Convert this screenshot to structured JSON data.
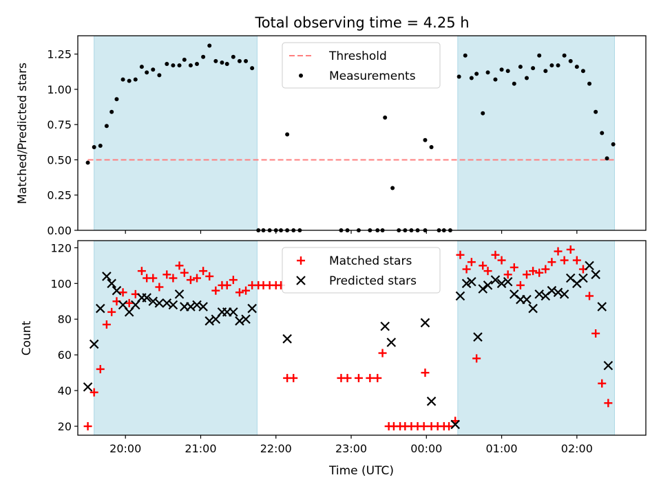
{
  "title": "Total observing time = 4.25 h",
  "colors": {
    "shade": "#add8e6",
    "threshold": "#ff7f7f",
    "matched": "#ff0000",
    "predicted": "#000000",
    "measurement": "#000000"
  },
  "chart_data": [
    {
      "type": "scatter",
      "panel": "top",
      "ylabel": "Matched/Predicted stars",
      "xlim": [
        "19:22",
        "02:55"
      ],
      "ylim": [
        0,
        1.38
      ],
      "yticks": [
        "0.00",
        "0.25",
        "0.50",
        "0.75",
        "1.00",
        "1.25"
      ],
      "shaded_intervals": [
        [
          "19:35",
          "21:45"
        ],
        [
          "00:25",
          "02:30"
        ]
      ],
      "threshold": {
        "name": "Threshold",
        "value": 0.5,
        "style": "dashed",
        "from": "19:30",
        "to": "02:30"
      },
      "legend": {
        "placement": "top-center",
        "entries": [
          "Threshold",
          "Measurements"
        ]
      },
      "series": [
        {
          "name": "Measurements",
          "marker": "dot",
          "points": [
            [
              "19:30",
              0.48
            ],
            [
              "19:35",
              0.59
            ],
            [
              "19:40",
              0.6
            ],
            [
              "19:45",
              0.74
            ],
            [
              "19:49",
              0.84
            ],
            [
              "19:53",
              0.93
            ],
            [
              "19:58",
              1.07
            ],
            [
              "20:03",
              1.06
            ],
            [
              "20:08",
              1.07
            ],
            [
              "20:13",
              1.16
            ],
            [
              "20:17",
              1.12
            ],
            [
              "20:22",
              1.14
            ],
            [
              "20:27",
              1.1
            ],
            [
              "20:33",
              1.18
            ],
            [
              "20:38",
              1.17
            ],
            [
              "20:43",
              1.17
            ],
            [
              "20:47",
              1.21
            ],
            [
              "20:52",
              1.17
            ],
            [
              "20:57",
              1.18
            ],
            [
              "21:02",
              1.23
            ],
            [
              "21:07",
              1.31
            ],
            [
              "21:12",
              1.2
            ],
            [
              "21:17",
              1.19
            ],
            [
              "21:21",
              1.18
            ],
            [
              "21:26",
              1.23
            ],
            [
              "21:31",
              1.2
            ],
            [
              "21:36",
              1.2
            ],
            [
              "21:41",
              1.15
            ],
            [
              "21:46",
              0.0
            ],
            [
              "21:50",
              0.0
            ],
            [
              "21:55",
              0.0
            ],
            [
              "22:00",
              0.0
            ],
            [
              "22:04",
              0.0
            ],
            [
              "22:09",
              0.0
            ],
            [
              "22:14",
              0.0
            ],
            [
              "22:19",
              0.0
            ],
            [
              "22:09",
              0.68
            ],
            [
              "22:52",
              0.0
            ],
            [
              "22:57",
              0.0
            ],
            [
              "23:06",
              0.0
            ],
            [
              "23:15",
              0.0
            ],
            [
              "23:21",
              0.0
            ],
            [
              "23:25",
              0.0
            ],
            [
              "23:27",
              0.8
            ],
            [
              "23:33",
              0.3
            ],
            [
              "23:38",
              0.0
            ],
            [
              "23:43",
              0.0
            ],
            [
              "23:48",
              0.0
            ],
            [
              "23:53",
              0.0
            ],
            [
              "23:59",
              0.0
            ],
            [
              "23:59",
              0.64
            ],
            [
              "00:04",
              0.59
            ],
            [
              "00:10",
              0.0
            ],
            [
              "00:14",
              0.0
            ],
            [
              "00:19",
              0.0
            ],
            [
              "00:26",
              1.09
            ],
            [
              "00:31",
              1.24
            ],
            [
              "00:36",
              1.08
            ],
            [
              "00:40",
              1.11
            ],
            [
              "00:45",
              0.83
            ],
            [
              "00:49",
              1.12
            ],
            [
              "00:55",
              1.07
            ],
            [
              "01:00",
              1.14
            ],
            [
              "01:05",
              1.13
            ],
            [
              "01:10",
              1.04
            ],
            [
              "01:15",
              1.16
            ],
            [
              "01:20",
              1.08
            ],
            [
              "01:25",
              1.15
            ],
            [
              "01:30",
              1.24
            ],
            [
              "01:35",
              1.13
            ],
            [
              "01:40",
              1.17
            ],
            [
              "01:45",
              1.17
            ],
            [
              "01:50",
              1.24
            ],
            [
              "01:55",
              1.2
            ],
            [
              "02:00",
              1.16
            ],
            [
              "02:05",
              1.13
            ],
            [
              "02:10",
              1.04
            ],
            [
              "02:15",
              0.84
            ],
            [
              "02:20",
              0.69
            ],
            [
              "02:24",
              0.51
            ],
            [
              "02:29",
              0.61
            ]
          ]
        }
      ]
    },
    {
      "type": "scatter",
      "panel": "bottom",
      "xlabel": "Time (UTC)",
      "ylabel": "Count",
      "xlim": [
        "19:22",
        "02:55"
      ],
      "ylim": [
        15,
        124
      ],
      "xticks": [
        "20:00",
        "21:00",
        "22:00",
        "23:00",
        "00:00",
        "01:00",
        "02:00"
      ],
      "yticks": [
        "20",
        "40",
        "60",
        "80",
        "100",
        "120"
      ],
      "shaded_intervals": [
        [
          "19:35",
          "21:45"
        ],
        [
          "00:25",
          "02:30"
        ]
      ],
      "legend": {
        "placement": "top-center",
        "entries": [
          "Matched stars",
          "Predicted stars"
        ]
      },
      "series": [
        {
          "name": "Matched stars",
          "marker": "plus",
          "points": [
            [
              "19:30",
              20
            ],
            [
              "19:35",
              39
            ],
            [
              "19:40",
              52
            ],
            [
              "19:45",
              77
            ],
            [
              "19:49",
              84
            ],
            [
              "19:53",
              90
            ],
            [
              "19:58",
              95
            ],
            [
              "20:03",
              89
            ],
            [
              "20:08",
              94
            ],
            [
              "20:13",
              107
            ],
            [
              "20:17",
              103
            ],
            [
              "20:22",
              103
            ],
            [
              "20:27",
              98
            ],
            [
              "20:33",
              105
            ],
            [
              "20:38",
              103
            ],
            [
              "20:43",
              110
            ],
            [
              "20:47",
              106
            ],
            [
              "20:52",
              102
            ],
            [
              "20:57",
              103
            ],
            [
              "21:02",
              107
            ],
            [
              "21:07",
              104
            ],
            [
              "21:12",
              96
            ],
            [
              "21:17",
              99
            ],
            [
              "21:21",
              99
            ],
            [
              "21:26",
              102
            ],
            [
              "21:31",
              95
            ],
            [
              "21:36",
              96
            ],
            [
              "21:41",
              99
            ],
            [
              "21:46",
              99
            ],
            [
              "21:50",
              99
            ],
            [
              "21:55",
              99
            ],
            [
              "22:00",
              99
            ],
            [
              "22:04",
              99
            ],
            [
              "22:09",
              47
            ],
            [
              "22:14",
              47
            ],
            [
              "22:52",
              47
            ],
            [
              "22:57",
              47
            ],
            [
              "23:06",
              47
            ],
            [
              "23:15",
              47
            ],
            [
              "23:21",
              47
            ],
            [
              "23:25",
              61
            ],
            [
              "23:30",
              20
            ],
            [
              "23:34",
              20
            ],
            [
              "23:39",
              20
            ],
            [
              "23:43",
              20
            ],
            [
              "23:48",
              20
            ],
            [
              "23:53",
              20
            ],
            [
              "23:59",
              50
            ],
            [
              "23:58",
              20
            ],
            [
              "00:04",
              20
            ],
            [
              "00:09",
              20
            ],
            [
              "00:14",
              20
            ],
            [
              "00:18",
              20
            ],
            [
              "00:23",
              23
            ],
            [
              "00:27",
              116
            ],
            [
              "00:32",
              108
            ],
            [
              "00:36",
              112
            ],
            [
              "00:40",
              58
            ],
            [
              "00:45",
              110
            ],
            [
              "00:49",
              107
            ],
            [
              "00:55",
              116
            ],
            [
              "01:00",
              113
            ],
            [
              "01:05",
              105
            ],
            [
              "01:10",
              109
            ],
            [
              "01:15",
              99
            ],
            [
              "01:20",
              105
            ],
            [
              "01:25",
              107
            ],
            [
              "01:30",
              106
            ],
            [
              "01:35",
              108
            ],
            [
              "01:40",
              112
            ],
            [
              "01:45",
              118
            ],
            [
              "01:50",
              113
            ],
            [
              "01:55",
              119
            ],
            [
              "02:00",
              113
            ],
            [
              "02:05",
              108
            ],
            [
              "02:10",
              93
            ],
            [
              "02:15",
              72
            ],
            [
              "02:20",
              44
            ],
            [
              "02:25",
              33
            ]
          ]
        },
        {
          "name": "Predicted stars",
          "marker": "x",
          "points": [
            [
              "19:30",
              42
            ],
            [
              "19:35",
              66
            ],
            [
              "19:40",
              86
            ],
            [
              "19:45",
              104
            ],
            [
              "19:49",
              100
            ],
            [
              "19:53",
              96
            ],
            [
              "19:58",
              88
            ],
            [
              "20:03",
              84
            ],
            [
              "20:08",
              88
            ],
            [
              "20:13",
              92
            ],
            [
              "20:17",
              92
            ],
            [
              "20:22",
              90
            ],
            [
              "20:27",
              89
            ],
            [
              "20:33",
              89
            ],
            [
              "20:38",
              88
            ],
            [
              "20:43",
              94
            ],
            [
              "20:47",
              87
            ],
            [
              "20:52",
              87
            ],
            [
              "20:57",
              88
            ],
            [
              "21:02",
              87
            ],
            [
              "21:07",
              79
            ],
            [
              "21:12",
              80
            ],
            [
              "21:17",
              84
            ],
            [
              "21:21",
              84
            ],
            [
              "21:26",
              84
            ],
            [
              "21:31",
              79
            ],
            [
              "21:36",
              80
            ],
            [
              "21:41",
              86
            ],
            [
              "22:09",
              69
            ],
            [
              "23:27",
              76
            ],
            [
              "23:32",
              67
            ],
            [
              "23:59",
              78
            ],
            [
              "00:04",
              34
            ],
            [
              "00:23",
              21
            ],
            [
              "00:27",
              93
            ],
            [
              "00:32",
              100
            ],
            [
              "00:36",
              101
            ],
            [
              "00:41",
              70
            ],
            [
              "00:45",
              97
            ],
            [
              "00:49",
              99
            ],
            [
              "00:55",
              102
            ],
            [
              "01:00",
              100
            ],
            [
              "01:05",
              101
            ],
            [
              "01:10",
              94
            ],
            [
              "01:15",
              91
            ],
            [
              "01:20",
              91
            ],
            [
              "01:25",
              86
            ],
            [
              "01:30",
              94
            ],
            [
              "01:35",
              93
            ],
            [
              "01:40",
              96
            ],
            [
              "01:45",
              95
            ],
            [
              "01:50",
              94
            ],
            [
              "01:55",
              103
            ],
            [
              "02:00",
              100
            ],
            [
              "02:05",
              103
            ],
            [
              "02:10",
              110
            ],
            [
              "02:15",
              105
            ],
            [
              "02:20",
              87
            ],
            [
              "02:25",
              54
            ]
          ]
        }
      ]
    }
  ]
}
